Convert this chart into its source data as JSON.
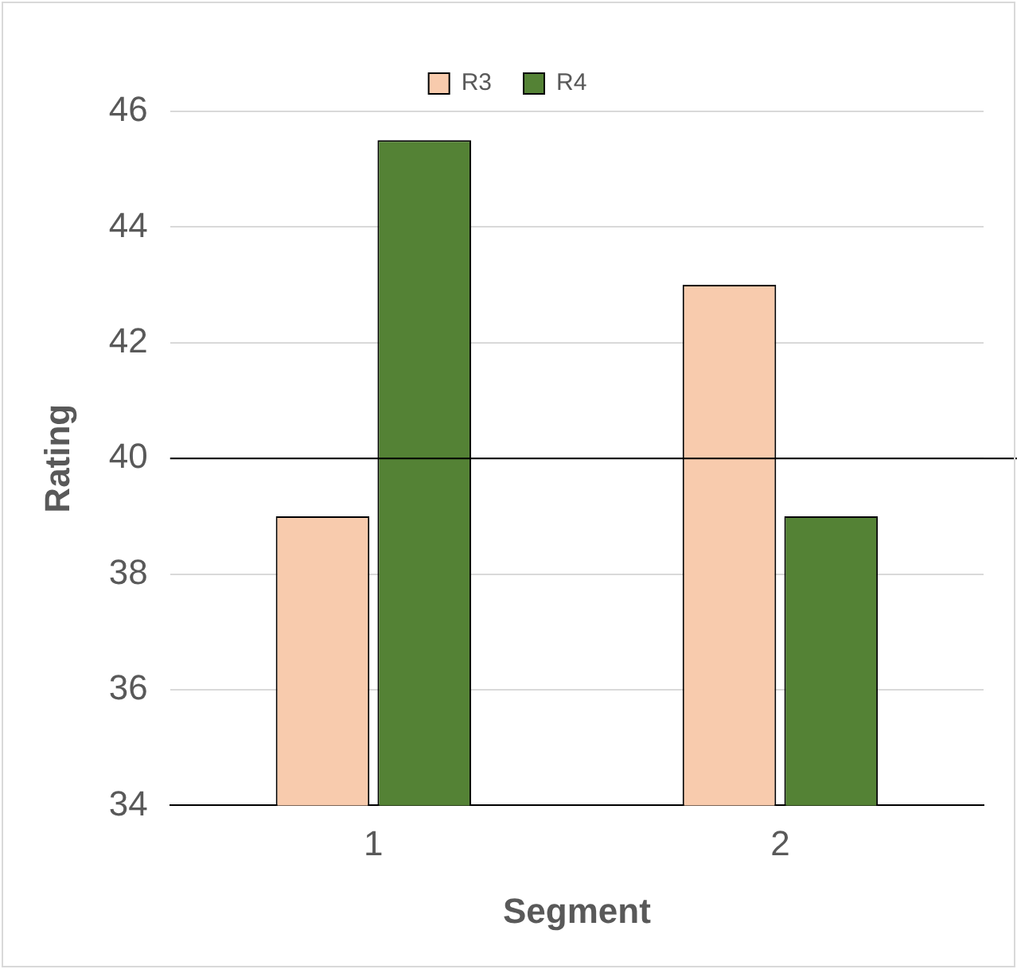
{
  "chart_data": {
    "type": "bar",
    "xlabel": "Segment",
    "ylabel": "Rating",
    "categories": [
      "1",
      "2"
    ],
    "series": [
      {
        "name": "R3",
        "color": "#f8cbad",
        "values": [
          39,
          43
        ]
      },
      {
        "name": "R4",
        "color": "#548235",
        "values": [
          45.5,
          39
        ]
      }
    ],
    "ylim": [
      34,
      46
    ],
    "yticks": [
      34,
      36,
      38,
      40,
      42,
      44,
      46
    ],
    "grid": "y",
    "legend": "top",
    "ref_lines": [
      {
        "axis": "y",
        "value": 40,
        "color": "#000000"
      }
    ]
  }
}
